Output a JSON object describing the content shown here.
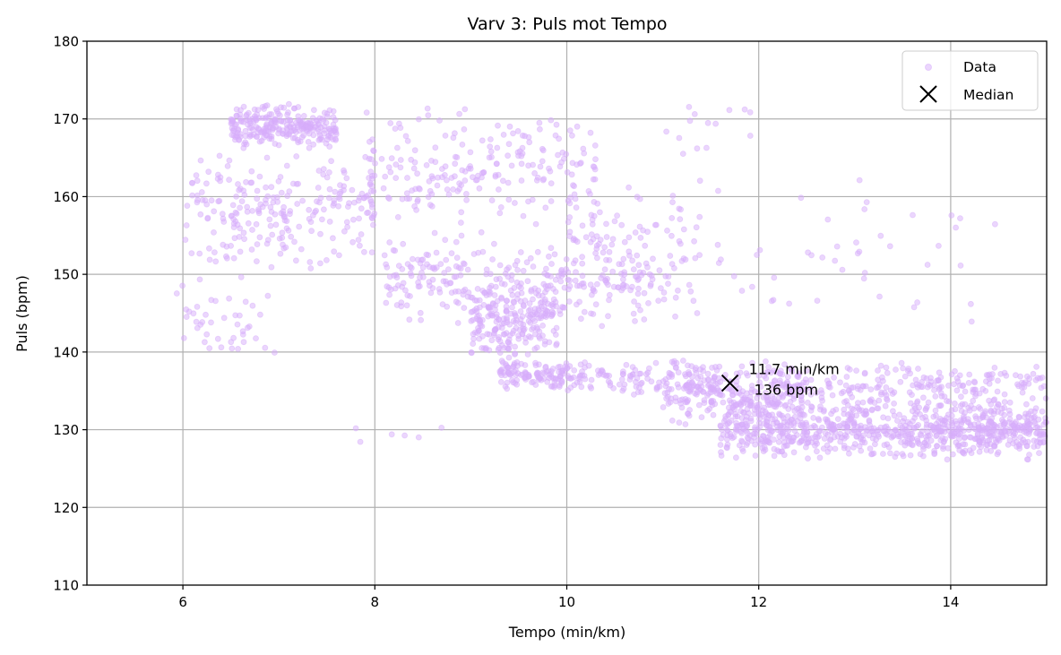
{
  "chart_data": {
    "type": "scatter",
    "title": "Varv 3: Puls mot Tempo",
    "xlabel": "Tempo (min/km)",
    "ylabel": "Puls (bpm)",
    "xlim": [
      5,
      15
    ],
    "ylim": [
      110,
      180
    ],
    "xticks": [
      6,
      8,
      10,
      12,
      14
    ],
    "yticks": [
      110,
      120,
      130,
      140,
      150,
      160,
      170,
      180
    ],
    "grid": true,
    "legend": {
      "placement": "top-right",
      "entries": [
        {
          "label": "Data",
          "marker": "circle",
          "color": "#d7aefb"
        },
        {
          "label": "Median",
          "marker": "x",
          "color": "#000000"
        }
      ]
    },
    "series": [
      {
        "name": "Data",
        "color": "#d7aefb",
        "clusters": [
          {
            "x_range": [
              6.5,
              7.6
            ],
            "y_range": [
              166,
              172
            ],
            "count": 260
          },
          {
            "x_range": [
              6.0,
              8.0
            ],
            "y_range": [
              150,
              166
            ],
            "count": 230
          },
          {
            "x_range": [
              5.9,
              7.0
            ],
            "y_range": [
              138,
              152
            ],
            "count": 45
          },
          {
            "x_range": [
              7.9,
              10.3
            ],
            "y_range": [
              155,
              172
            ],
            "count": 220
          },
          {
            "x_range": [
              8.1,
              10.9
            ],
            "y_range": [
              143,
              156
            ],
            "count": 260
          },
          {
            "x_range": [
              9.0,
              9.9
            ],
            "y_range": [
              139,
              149
            ],
            "count": 220
          },
          {
            "x_range": [
              9.3,
              10.2
            ],
            "y_range": [
              135,
              139
            ],
            "count": 140
          },
          {
            "x_range": [
              10.0,
              11.4
            ],
            "y_range": [
              143,
              163
            ],
            "count": 110
          },
          {
            "x_range": [
              10.2,
              11.6
            ],
            "y_range": [
              134,
              139
            ],
            "count": 110
          },
          {
            "x_range": [
              11.0,
              12.5
            ],
            "y_range": [
              130,
              139
            ],
            "count": 230
          },
          {
            "x_range": [
              11.6,
              15.0
            ],
            "y_range": [
              126,
              134
            ],
            "count": 820
          },
          {
            "x_range": [
              12.0,
              15.0
            ],
            "y_range": [
              132,
              139
            ],
            "count": 220
          },
          {
            "x_range": [
              11.5,
              14.5
            ],
            "y_range": [
              143,
              163
            ],
            "count": 45
          },
          {
            "x_range": [
              11.0,
              12.0
            ],
            "y_range": [
              165,
              172
            ],
            "count": 14
          },
          {
            "x_range": [
              7.8,
              8.8
            ],
            "y_range": [
              128,
              131
            ],
            "count": 6
          }
        ]
      }
    ],
    "median": {
      "x": 11.7,
      "y": 136,
      "label_line1": "11.7 min/km",
      "label_line2": "136 bpm"
    }
  }
}
